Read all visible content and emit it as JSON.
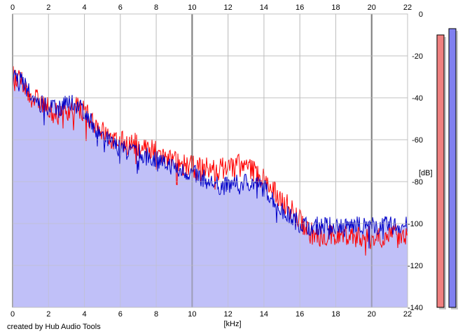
{
  "credit": "created by Hub Audio Tools",
  "colors": {
    "background": "#ffffff",
    "grid_minor": "#c0c0c0",
    "grid_major": "#808080",
    "fill": "#c0c0f8",
    "left_channel": "#ff0000",
    "right_channel": "#0000c8",
    "meter_left": "#f08080",
    "meter_right": "#8080f0"
  },
  "chart_data": {
    "type": "line",
    "title": "",
    "xlabel": "[kHz]",
    "ylabel": "[dB]",
    "xlim": [
      0,
      22
    ],
    "ylim": [
      -140,
      0
    ],
    "x_ticks": [
      "0",
      "2",
      "4",
      "6",
      "8",
      "10",
      "12",
      "14",
      "16",
      "18",
      "20",
      "22"
    ],
    "y_ticks": [
      "0",
      "-20",
      "-40",
      "-60",
      "-80",
      "-100",
      "-120",
      "-140"
    ],
    "grid": true,
    "x": [
      0,
      0.5,
      1,
      1.5,
      2,
      2.5,
      3,
      3.5,
      4,
      4.5,
      5,
      5.5,
      6,
      6.5,
      7,
      7.5,
      8,
      8.5,
      9,
      9.5,
      10,
      10.5,
      11,
      11.5,
      12,
      12.5,
      13,
      13.5,
      14,
      14.5,
      15,
      15.5,
      16,
      16.5,
      17,
      17.5,
      18,
      18.5,
      19,
      19.5,
      20,
      20.5,
      21,
      21.5,
      22
    ],
    "series": [
      {
        "values": [
          -30,
          -33,
          -39,
          -42,
          -45,
          -48,
          -46,
          -44,
          -47,
          -51,
          -56,
          -60,
          -61,
          -62,
          -62,
          -64,
          -66,
          -68,
          -70,
          -72,
          -73,
          -73,
          -74,
          -74,
          -73,
          -72,
          -73,
          -75,
          -79,
          -84,
          -89,
          -93,
          -98,
          -104,
          -106,
          -106,
          -106,
          -105,
          -106,
          -106,
          -107,
          -106,
          -105,
          -105,
          -105
        ]
      },
      {
        "values": [
          -28,
          -32,
          -38,
          -43,
          -44,
          -46,
          -42,
          -43,
          -46,
          -53,
          -58,
          -62,
          -64,
          -66,
          -66,
          -68,
          -69,
          -71,
          -73,
          -75,
          -76,
          -78,
          -80,
          -82,
          -82,
          -81,
          -80,
          -81,
          -83,
          -88,
          -94,
          -97,
          -100,
          -101,
          -101,
          -101,
          -101,
          -101,
          -101,
          -101,
          -101,
          -101,
          -101,
          -101,
          -101
        ]
      }
    ],
    "level_meters": [
      -10,
      -7
    ]
  }
}
